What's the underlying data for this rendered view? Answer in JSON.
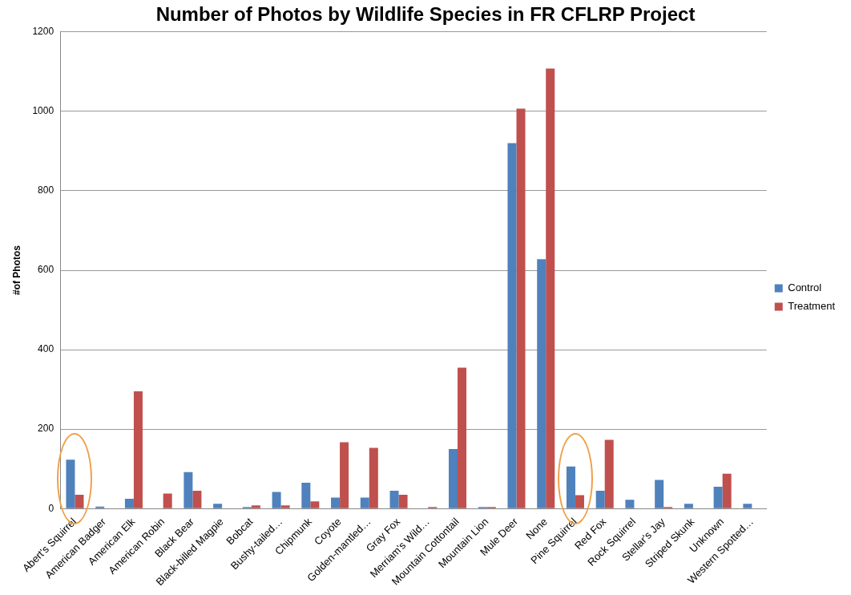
{
  "chart_data": {
    "type": "bar",
    "title": "Number of Photos by Wildlife Species in FR CFLRP Project",
    "ylabel": "#of Photos",
    "categories": [
      "Abert's Squirrel",
      "American Badger",
      "American Elk",
      "American Robin",
      "Black Bear",
      "Black-billed Magpie",
      "Bobcat",
      "Bushy-tailed…",
      "Chipmunk",
      "Coyote",
      "Golden-mantled…",
      "Gray Fox",
      "Merriam's Wild…",
      "Mountain Cottontail",
      "Mountain Lion",
      "Mule Deer",
      "None",
      "Pine Squirrel",
      "Red Fox",
      "Rock Squirrel",
      "Stellar's Jay",
      "Striped Skunk",
      "Unknown",
      "Western Spotted…"
    ],
    "series": [
      {
        "name": "Control",
        "color": "#4f81bd",
        "values": [
          123,
          5,
          25,
          0,
          92,
          12,
          4,
          42,
          65,
          28,
          28,
          45,
          0,
          150,
          4,
          920,
          628,
          106,
          45,
          22,
          72,
          12,
          55,
          12
        ]
      },
      {
        "name": "Treatment",
        "color": "#c0504d",
        "values": [
          35,
          0,
          295,
          38,
          45,
          0,
          8,
          8,
          18,
          167,
          153,
          35,
          4,
          355,
          4,
          1007,
          1108,
          34,
          173,
          0,
          4,
          0,
          88,
          0
        ]
      }
    ],
    "ylim": [
      0,
      1200
    ],
    "yticks": [
      0,
      200,
      400,
      600,
      800,
      1000,
      1200
    ],
    "grid": "y",
    "legend": "right"
  }
}
